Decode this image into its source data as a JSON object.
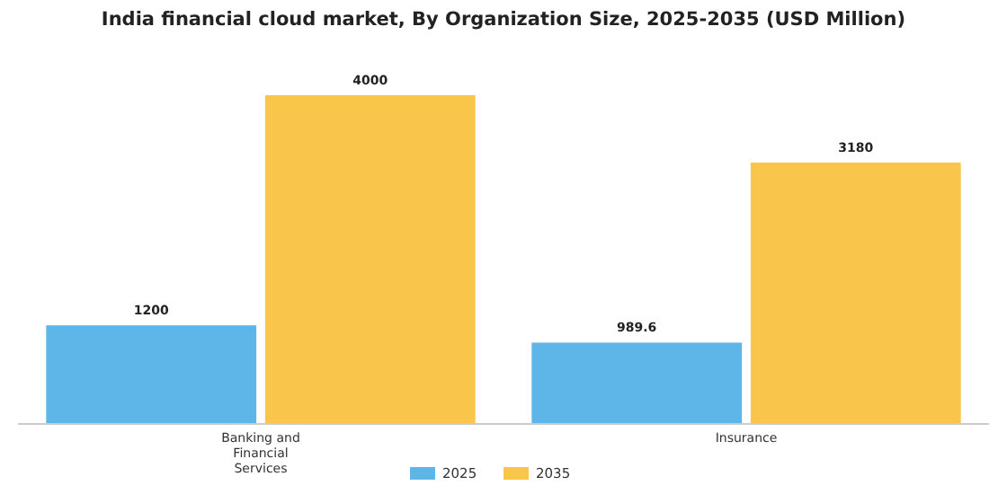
{
  "chart_data": {
    "type": "bar",
    "title": "India financial cloud market, By Organization Size, 2025-2035 (USD Million)",
    "categories": [
      "Banking and Financial Services",
      "Insurance"
    ],
    "series": [
      {
        "name": "2025",
        "color": "#5db5e8",
        "values": [
          1200,
          989.6
        ]
      },
      {
        "name": "2035",
        "color": "#f9c54b",
        "values": [
          4000,
          3180
        ]
      }
    ],
    "data_labels": true,
    "legend": "bottom",
    "grid": false
  }
}
